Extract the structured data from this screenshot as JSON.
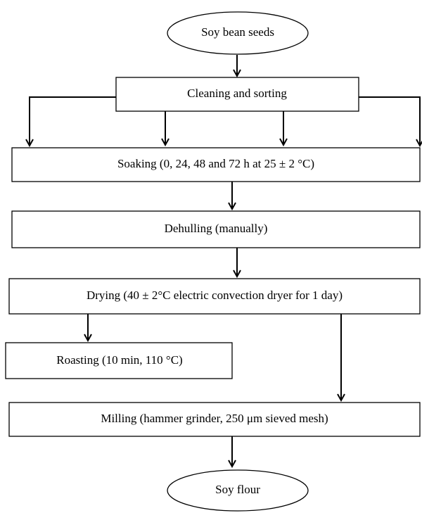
{
  "nodes": [
    {
      "label": "Soy bean seeds"
    },
    {
      "label": "Cleaning and sorting"
    },
    {
      "label": "Soaking (0, 24, 48 and 72 h at 25 ± 2 °C)"
    },
    {
      "label": "Dehulling (manually)"
    },
    {
      "label": "Drying (40 ± 2°C electric convection dryer for 1 day)"
    },
    {
      "label": "Roasting (10 min, 110 °C)"
    },
    {
      "label": "Milling (hammer grinder, 250 μm sieved mesh)"
    },
    {
      "label": "Soy flour"
    }
  ]
}
